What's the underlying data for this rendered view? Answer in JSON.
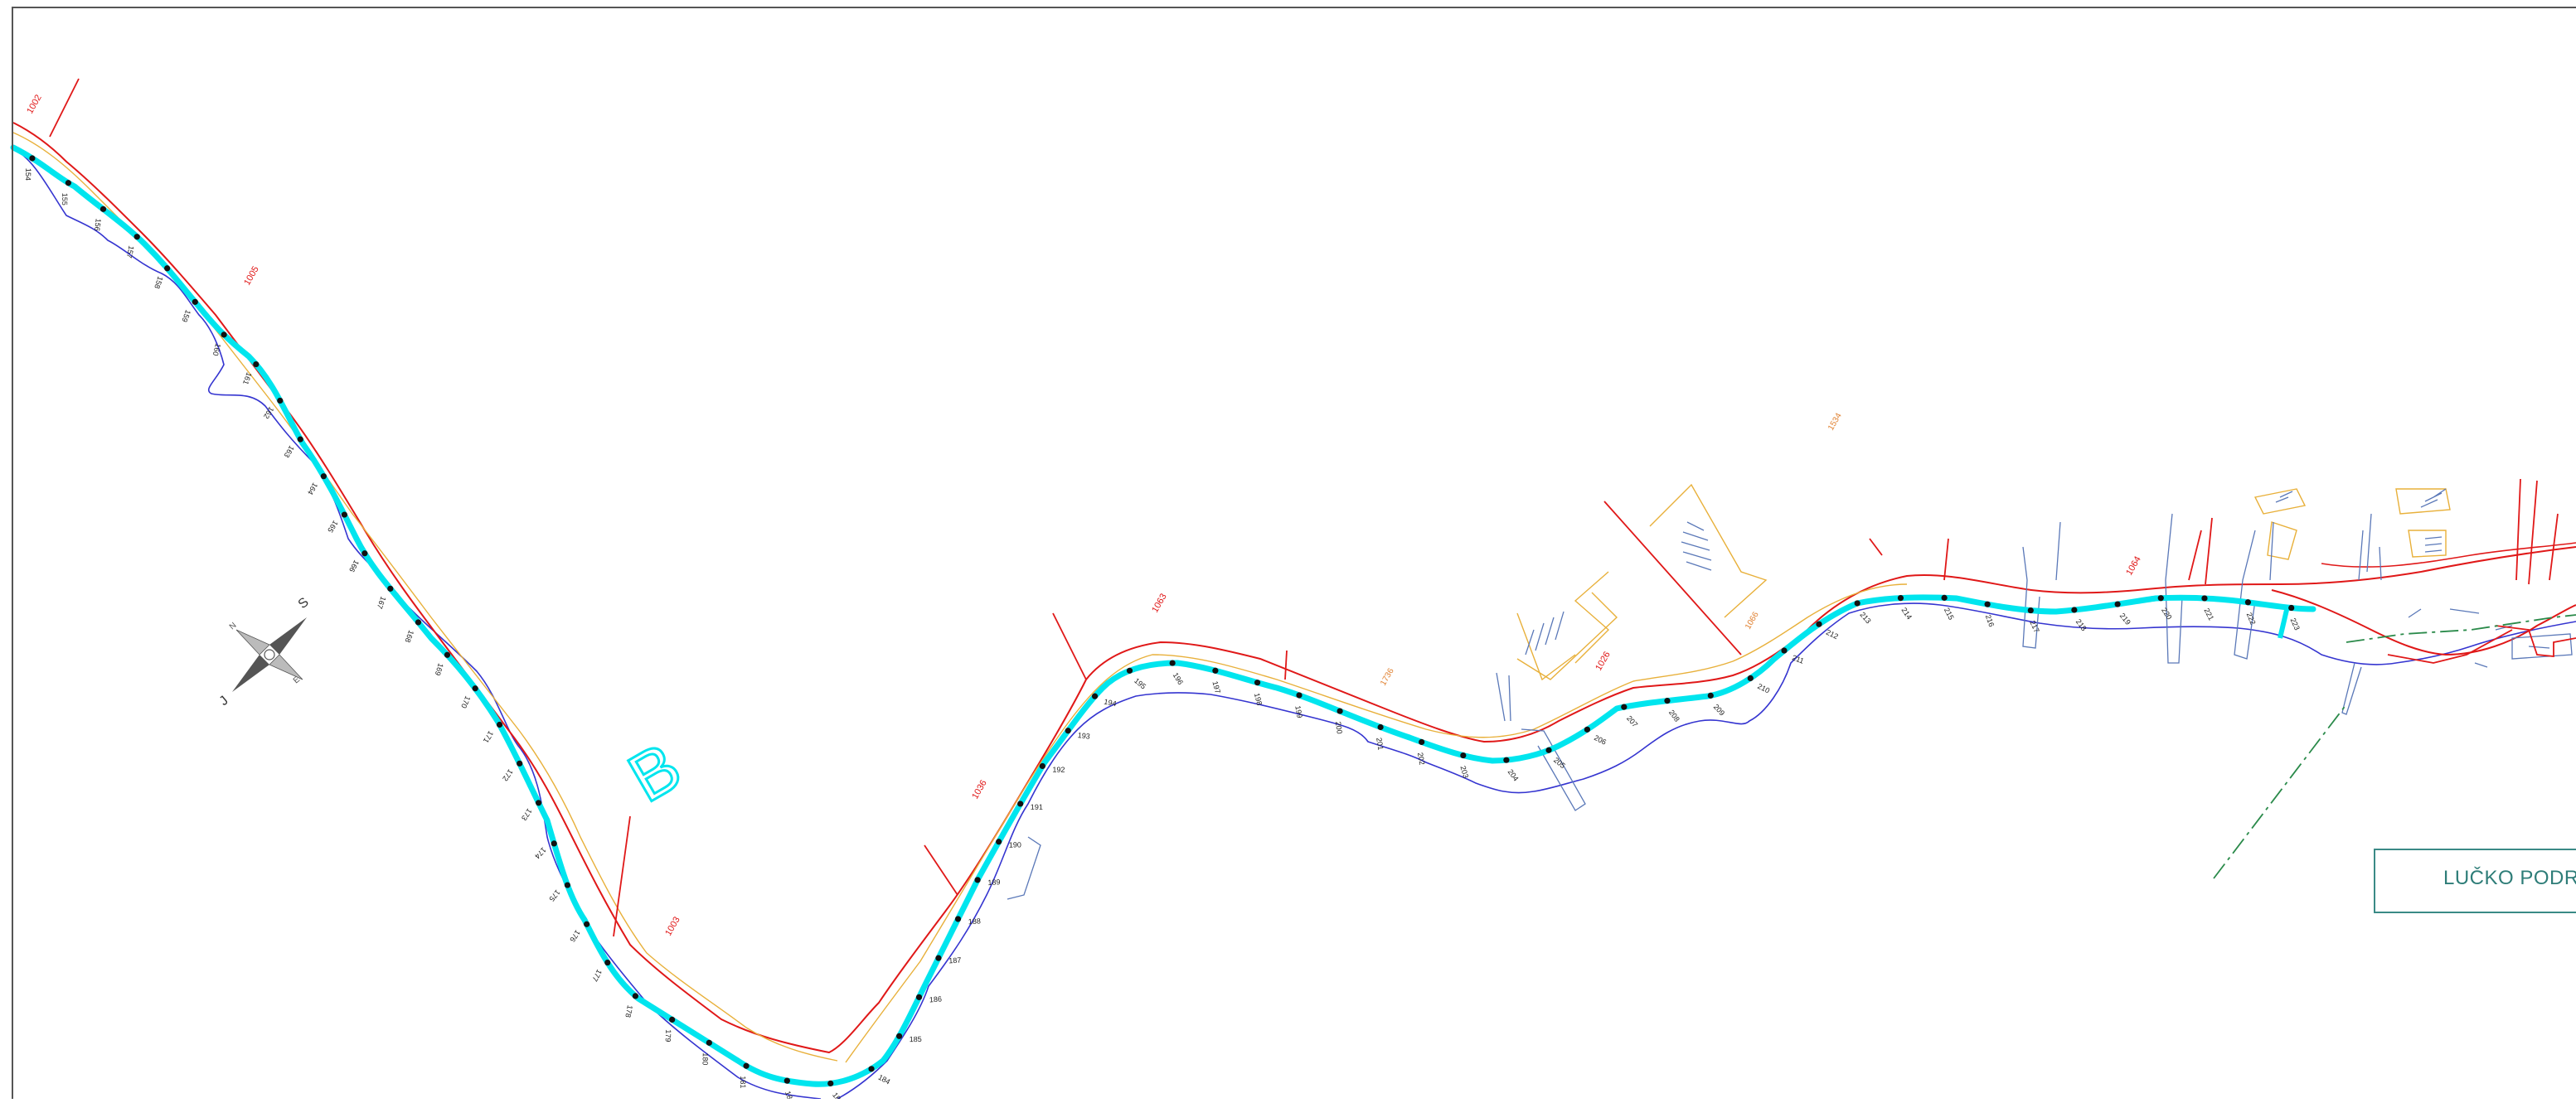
{
  "map": {
    "sector_label": "B",
    "zone_label": "LUČKO PODR",
    "colors": {
      "route": "#00e5ee",
      "shoreline": "#3535d0",
      "parcel_line": "#e01818",
      "boundary_line": "#e8b03a",
      "detail": "#5a78b8",
      "zone_frame": "#3a8a86",
      "axis": "#2a8a4a"
    },
    "compass": {
      "letters": [
        "S",
        "J"
      ]
    },
    "red_labels": [
      "1002",
      "1005",
      "1003",
      "1036",
      "1063",
      "1026",
      "1064"
    ],
    "route_labels": [
      "154",
      "155",
      "156",
      "157",
      "158",
      "159",
      "160",
      "161",
      "162",
      "163",
      "164",
      "165",
      "166",
      "167",
      "168",
      "169",
      "170",
      "171",
      "172",
      "173",
      "174",
      "175",
      "176",
      "177",
      "178",
      "179",
      "180",
      "181",
      "182",
      "183",
      "184",
      "185",
      "186",
      "187",
      "188",
      "189",
      "190",
      "191",
      "192",
      "193",
      "194",
      "195",
      "196",
      "197",
      "198",
      "199",
      "200",
      "201",
      "202",
      "203",
      "204",
      "205",
      "206",
      "207",
      "208",
      "209",
      "210",
      "211",
      "212",
      "213",
      "214",
      "215",
      "216",
      "217",
      "218",
      "219",
      "220",
      "221",
      "222",
      "223"
    ]
  }
}
